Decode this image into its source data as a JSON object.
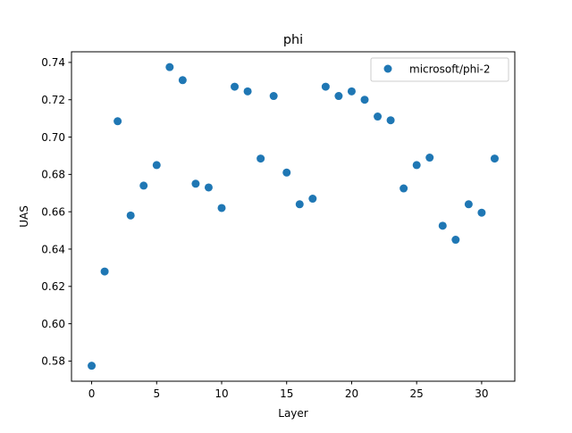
{
  "chart_data": {
    "type": "scatter",
    "title": "phi",
    "xlabel": "Layer",
    "ylabel": "UAS",
    "xlim": [
      -1.55,
      32.55
    ],
    "ylim": [
      0.5692,
      0.7457
    ],
    "x_ticks": [
      0,
      5,
      10,
      15,
      20,
      25,
      30
    ],
    "x_tick_labels": [
      "0",
      "5",
      "10",
      "15",
      "20",
      "25",
      "30"
    ],
    "y_ticks": [
      0.58,
      0.6,
      0.62,
      0.64,
      0.66,
      0.68,
      0.7,
      0.72,
      0.74
    ],
    "y_tick_labels": [
      "0.58",
      "0.60",
      "0.62",
      "0.64",
      "0.66",
      "0.68",
      "0.70",
      "0.72",
      "0.74"
    ],
    "grid": false,
    "legend_position": "top-right",
    "series": [
      {
        "name": "microsoft/phi-2",
        "color": "#1f77b4",
        "x": [
          0,
          1,
          2,
          3,
          4,
          5,
          6,
          7,
          8,
          9,
          10,
          11,
          12,
          13,
          14,
          15,
          16,
          17,
          18,
          19,
          20,
          21,
          22,
          23,
          24,
          25,
          26,
          27,
          28,
          29,
          30,
          31
        ],
        "y": [
          0.5775,
          0.628,
          0.7085,
          0.658,
          0.674,
          0.685,
          0.7375,
          0.7305,
          0.675,
          0.673,
          0.662,
          0.727,
          0.7245,
          0.6885,
          0.722,
          0.681,
          0.664,
          0.667,
          0.727,
          0.722,
          0.7245,
          0.72,
          0.711,
          0.709,
          0.6725,
          0.685,
          0.689,
          0.6525,
          0.645,
          0.664,
          0.6595,
          0.6885
        ]
      }
    ]
  }
}
